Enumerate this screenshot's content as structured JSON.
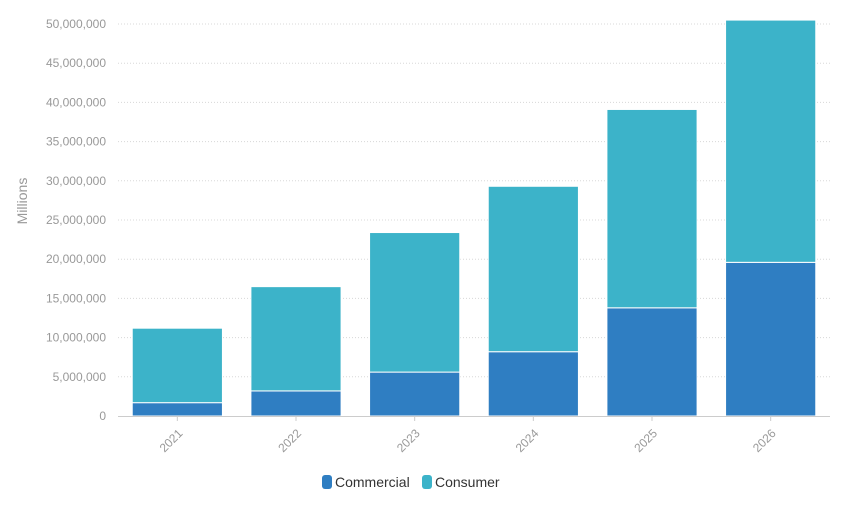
{
  "chart_data": {
    "type": "bar",
    "stacked": true,
    "categories": [
      "2021",
      "2022",
      "2023",
      "2024",
      "2025",
      "2026"
    ],
    "series": [
      {
        "name": "Commercial",
        "color": "#2f7ec2",
        "values": [
          1700000,
          3200000,
          5600000,
          8200000,
          13800000,
          19600000
        ]
      },
      {
        "name": "Consumer",
        "color": "#3cb3c9",
        "values": [
          9500000,
          13300000,
          17800000,
          21100000,
          25300000,
          30900000
        ]
      }
    ],
    "ylabel": "Millions",
    "ylim": [
      0,
      50000000
    ],
    "yticks": [
      "0",
      "5,000,000",
      "10,000,000",
      "15,000,000",
      "20,000,000",
      "25,000,000",
      "30,000,000",
      "35,000,000",
      "40,000,000",
      "45,000,000",
      "50,000,000"
    ],
    "grid": true,
    "legend_position": "bottom-center"
  }
}
